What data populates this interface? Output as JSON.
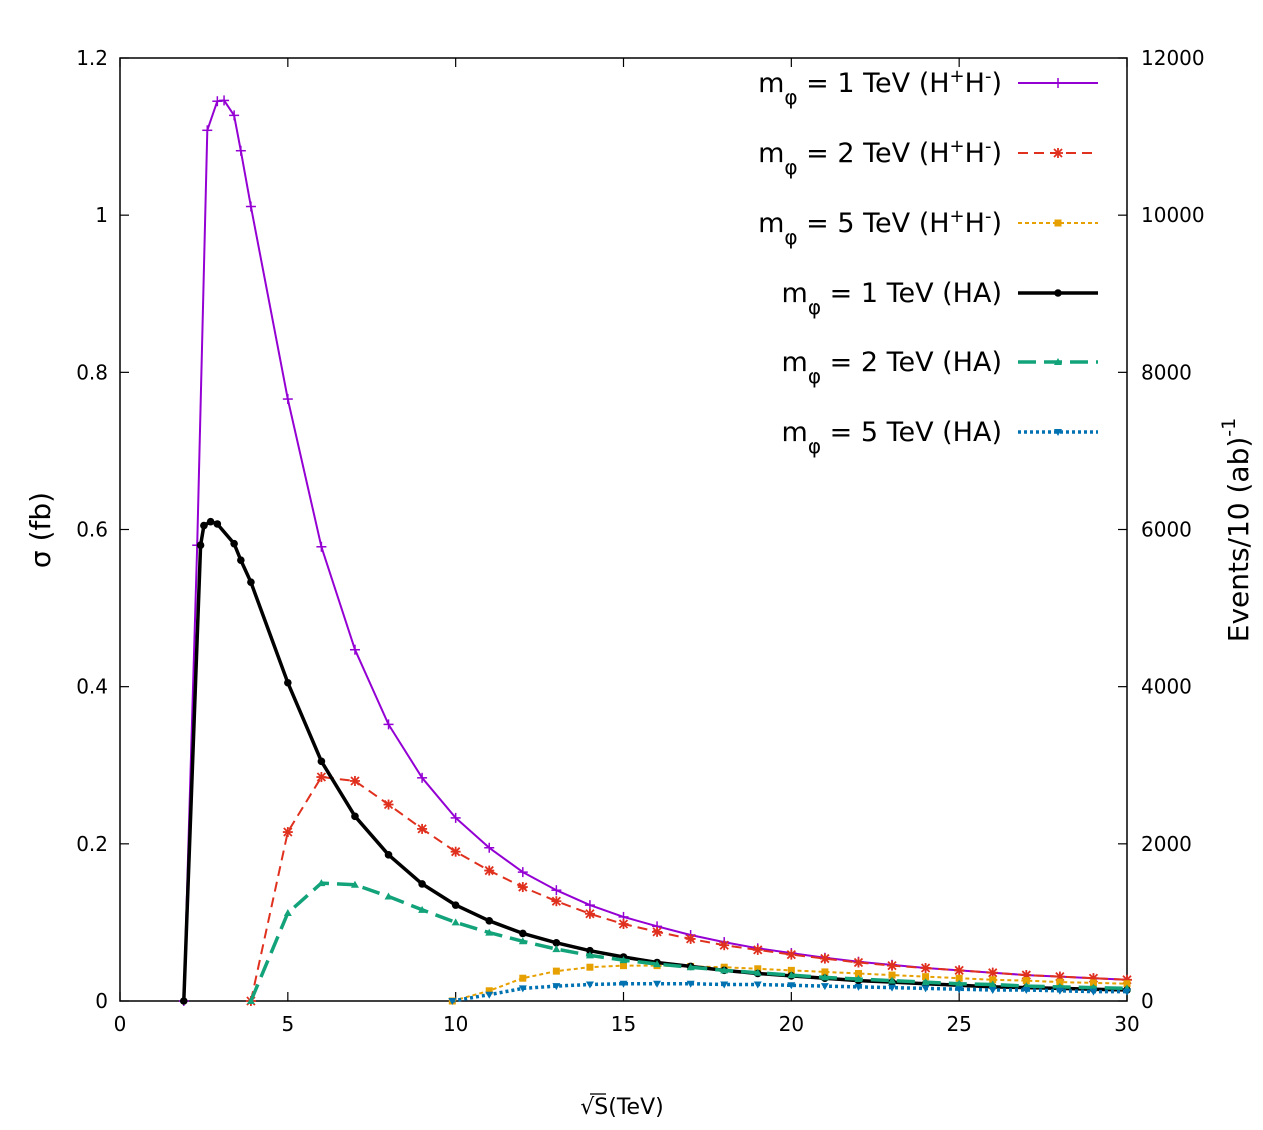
{
  "chart_data": {
    "type": "line",
    "title": "",
    "xlabel_root": "√",
    "xlabel_rest": "S(TeV)",
    "ylabel": "σ (fb)",
    "y2label_base": "Events/10 (ab)",
    "y2label_exp": "-1",
    "xlim": [
      0,
      30
    ],
    "ylim": [
      0,
      1.2
    ],
    "y2lim": [
      0,
      12000
    ],
    "xticks": [
      0,
      5,
      10,
      15,
      20,
      25,
      30
    ],
    "xtick_labels": [
      "0",
      "5",
      "10",
      "15",
      "20",
      "25",
      "30"
    ],
    "yticks": [
      0,
      0.2,
      0.4,
      0.6,
      0.8,
      1.0,
      1.2
    ],
    "ytick_labels": [
      "0",
      "0.2",
      "0.4",
      "0.6",
      "0.8",
      "1",
      "1.2"
    ],
    "y2ticks": [
      0,
      2000,
      4000,
      6000,
      8000,
      10000,
      12000
    ],
    "y2tick_labels": [
      "0",
      "2000",
      "4000",
      "6000",
      "8000",
      "10000",
      "12000"
    ],
    "legend_position": "top-right",
    "series": [
      {
        "name": "m_φ = 1 TeV (H+H-)",
        "legend": {
          "pre": "m",
          "sub": "φ",
          "mid": " = 1 TeV (H",
          "sup1": "+",
          "mid2": "H",
          "sup2": "-",
          "post": ")"
        },
        "color": "#9400d3",
        "dash": "",
        "width": 2,
        "marker": "plus",
        "x": [
          1.9,
          2.3,
          2.6,
          2.9,
          3.1,
          3.4,
          3.6,
          3.9,
          5,
          6,
          7,
          8,
          9,
          10,
          11,
          12,
          13,
          14,
          15,
          16,
          17,
          18,
          19,
          20,
          21,
          22,
          23,
          24,
          25,
          26,
          27,
          28,
          29,
          30
        ],
        "y": [
          0,
          0.58,
          1.108,
          1.145,
          1.146,
          1.127,
          1.082,
          1.011,
          0.766,
          0.578,
          0.447,
          0.352,
          0.284,
          0.233,
          0.195,
          0.164,
          0.141,
          0.122,
          0.107,
          0.095,
          0.084,
          0.075,
          0.067,
          0.061,
          0.055,
          0.05,
          0.046,
          0.042,
          0.039,
          0.036,
          0.033,
          0.031,
          0.029,
          0.027
        ]
      },
      {
        "name": "m_φ = 2 TeV (H+H-)",
        "legend": {
          "pre": "m",
          "sub": "φ",
          "mid": " = 2 TeV (H",
          "sup1": "+",
          "mid2": "H",
          "sup2": "-",
          "post": ")"
        },
        "color": "#e0301e",
        "dash": "10,6",
        "width": 2,
        "marker": "star",
        "x": [
          3.9,
          5,
          6,
          7,
          8,
          9,
          10,
          11,
          12,
          13,
          14,
          15,
          16,
          17,
          18,
          19,
          20,
          21,
          22,
          23,
          24,
          25,
          26,
          27,
          28,
          29,
          30
        ],
        "y": [
          0,
          0.215,
          0.285,
          0.28,
          0.25,
          0.219,
          0.19,
          0.166,
          0.145,
          0.127,
          0.111,
          0.098,
          0.088,
          0.079,
          0.071,
          0.065,
          0.059,
          0.054,
          0.049,
          0.045,
          0.042,
          0.039,
          0.036,
          0.033,
          0.031,
          0.029,
          0.027
        ]
      },
      {
        "name": "m_φ = 5 TeV (H+H-)",
        "legend": {
          "pre": "m",
          "sub": "φ",
          "mid": " = 5 TeV (H",
          "sup1": "+",
          "mid2": "H",
          "sup2": "-",
          "post": ")"
        },
        "color": "#e6a000",
        "dash": "4,3",
        "width": 2,
        "marker": "square",
        "x": [
          9.9,
          11,
          12,
          13,
          14,
          15,
          16,
          17,
          18,
          19,
          20,
          21,
          22,
          23,
          24,
          25,
          26,
          27,
          28,
          29,
          30
        ],
        "y": [
          0,
          0.013,
          0.029,
          0.038,
          0.043,
          0.045,
          0.045,
          0.044,
          0.043,
          0.041,
          0.039,
          0.037,
          0.035,
          0.033,
          0.031,
          0.029,
          0.027,
          0.026,
          0.024,
          0.023,
          0.022
        ]
      },
      {
        "name": "m_φ = 1 TeV (HA)",
        "legend": {
          "pre": "m",
          "sub": "φ",
          "mid": " = 1 TeV (HA)",
          "sup1": "",
          "mid2": "",
          "sup2": "",
          "post": ""
        },
        "color": "#000000",
        "dash": "",
        "width": 3.5,
        "marker": "circle",
        "x": [
          1.9,
          2.4,
          2.5,
          2.7,
          2.9,
          3.4,
          3.6,
          3.9,
          5,
          6,
          7,
          8,
          9,
          10,
          11,
          12,
          13,
          14,
          15,
          16,
          17,
          18,
          19,
          20,
          21,
          22,
          23,
          24,
          25,
          26,
          27,
          28,
          29,
          30
        ],
        "y": [
          0,
          0.58,
          0.605,
          0.61,
          0.607,
          0.582,
          0.561,
          0.533,
          0.405,
          0.305,
          0.235,
          0.186,
          0.149,
          0.122,
          0.102,
          0.086,
          0.074,
          0.064,
          0.056,
          0.049,
          0.044,
          0.039,
          0.035,
          0.032,
          0.029,
          0.026,
          0.024,
          0.022,
          0.02,
          0.018,
          0.017,
          0.016,
          0.015,
          0.014
        ]
      },
      {
        "name": "m_φ = 2 TeV (HA)",
        "legend": {
          "pre": "m",
          "sub": "φ",
          "mid": " = 2 TeV (HA)",
          "sup1": "",
          "mid2": "",
          "sup2": "",
          "post": ""
        },
        "color": "#12a37a",
        "dash": "18,8",
        "width": 3.5,
        "marker": "tri",
        "x": [
          3.9,
          5,
          6,
          7,
          8,
          9,
          10,
          11,
          12,
          13,
          14,
          15,
          16,
          17,
          18,
          19,
          20,
          21,
          22,
          23,
          24,
          25,
          26,
          27,
          28,
          29,
          30
        ],
        "y": [
          0,
          0.112,
          0.15,
          0.148,
          0.133,
          0.116,
          0.1,
          0.087,
          0.076,
          0.066,
          0.058,
          0.052,
          0.047,
          0.043,
          0.039,
          0.036,
          0.033,
          0.03,
          0.028,
          0.026,
          0.024,
          0.022,
          0.021,
          0.019,
          0.018,
          0.017,
          0.016
        ]
      },
      {
        "name": "m_φ = 5 TeV (HA)",
        "legend": {
          "pre": "m",
          "sub": "φ",
          "mid": " = 5 TeV (HA)",
          "sup1": "",
          "mid2": "",
          "sup2": "",
          "post": ""
        },
        "color": "#0072b2",
        "dash": "3,3",
        "width": 3.5,
        "marker": "tridown",
        "x": [
          9.9,
          11,
          12,
          13,
          14,
          15,
          16,
          17,
          18,
          19,
          20,
          21,
          22,
          23,
          24,
          25,
          26,
          27,
          28,
          29,
          30
        ],
        "y": [
          0,
          0.008,
          0.016,
          0.019,
          0.021,
          0.022,
          0.022,
          0.022,
          0.021,
          0.021,
          0.02,
          0.019,
          0.018,
          0.017,
          0.016,
          0.015,
          0.014,
          0.014,
          0.013,
          0.012,
          0.012
        ]
      }
    ]
  }
}
